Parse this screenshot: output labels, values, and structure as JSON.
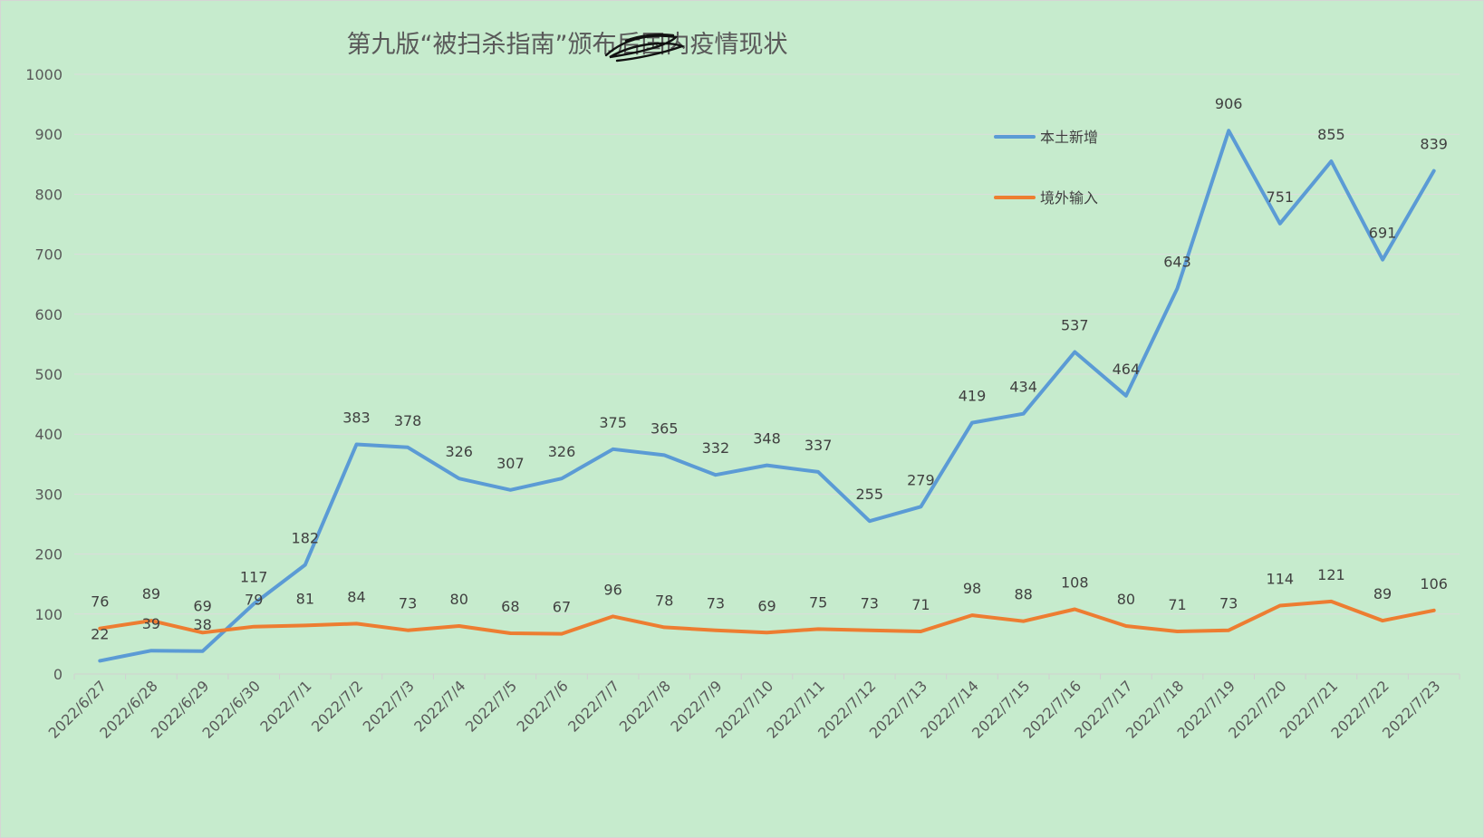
{
  "chart_data": {
    "type": "line",
    "title": "第九版“被扫杀指南”颁布后国内疫情现状",
    "xlabel": "",
    "ylabel": "",
    "ylim": [
      0,
      1000
    ],
    "yticks": [
      0,
      100,
      200,
      300,
      400,
      500,
      600,
      700,
      800,
      900,
      1000
    ],
    "grid": true,
    "legend_position": "top-right",
    "categories": [
      "2022/6/27",
      "2022/6/28",
      "2022/6/29",
      "2022/6/30",
      "2022/7/1",
      "2022/7/2",
      "2022/7/3",
      "2022/7/4",
      "2022/7/5",
      "2022/7/6",
      "2022/7/7",
      "2022/7/8",
      "2022/7/9",
      "2022/7/10",
      "2022/7/11",
      "2022/7/12",
      "2022/7/13",
      "2022/7/14",
      "2022/7/15",
      "2022/7/16",
      "2022/7/17",
      "2022/7/18",
      "2022/7/19",
      "2022/7/20",
      "2022/7/21",
      "2022/7/22",
      "2022/7/23"
    ],
    "series": [
      {
        "name": "本土新增",
        "color": "#5b9bd5",
        "values": [
          22,
          39,
          38,
          117,
          182,
          383,
          378,
          326,
          307,
          326,
          375,
          365,
          332,
          348,
          337,
          255,
          279,
          419,
          434,
          537,
          464,
          643,
          906,
          751,
          855,
          691,
          839
        ]
      },
      {
        "name": "境外输入",
        "color": "#ed7d31",
        "values": [
          76,
          89,
          69,
          79,
          81,
          84,
          73,
          80,
          68,
          67,
          96,
          78,
          73,
          69,
          75,
          73,
          71,
          98,
          88,
          108,
          80,
          71,
          73,
          114,
          121,
          89,
          106
        ]
      }
    ]
  }
}
